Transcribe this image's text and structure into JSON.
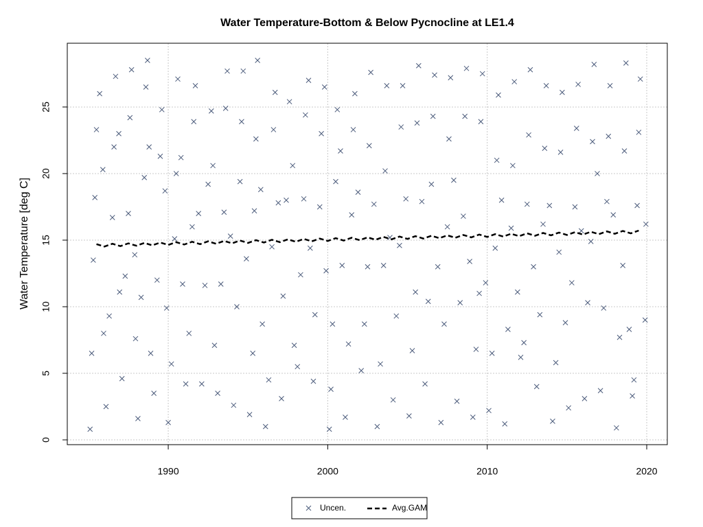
{
  "chart_data": {
    "type": "scatter",
    "title": "Water Temperature-Bottom & Below Pycnocline at LE1.4",
    "y_label": "Water Temperature [deg C]",
    "xlim": [
      1983.67,
      2021.29
    ],
    "ylim": [
      -0.36,
      29.79
    ],
    "xticks": [
      1990,
      2000,
      2010,
      2020
    ],
    "yticks": [
      0,
      5,
      10,
      15,
      20,
      25
    ],
    "grid": true,
    "legend": "bottom",
    "series": [
      {
        "name": "Uncen.",
        "color": "#4a5a7a",
        "style": "points",
        "x": [
          1985.1,
          1985.2,
          1985.3,
          1985.4,
          1985.5,
          1985.7,
          1985.9,
          1985.95,
          1986.1,
          1986.3,
          1986.5,
          1986.6,
          1986.7,
          1986.9,
          1986.95,
          1987.1,
          1987.3,
          1987.5,
          1987.6,
          1987.7,
          1987.9,
          1987.95,
          1988.1,
          1988.3,
          1988.5,
          1988.6,
          1988.7,
          1988.8,
          1988.9,
          1989.1,
          1989.3,
          1989.5,
          1989.6,
          1989.8,
          1989.9,
          1990.0,
          1990.2,
          1990.4,
          1990.5,
          1990.6,
          1990.8,
          1990.9,
          1991.1,
          1991.3,
          1991.5,
          1991.6,
          1991.7,
          1991.9,
          1992.1,
          1992.3,
          1992.5,
          1992.7,
          1992.8,
          1992.9,
          1993.1,
          1993.3,
          1993.5,
          1993.6,
          1993.7,
          1993.9,
          1994.1,
          1994.3,
          1994.5,
          1994.6,
          1994.7,
          1994.9,
          1995.1,
          1995.3,
          1995.4,
          1995.5,
          1995.6,
          1995.8,
          1995.9,
          1996.1,
          1996.3,
          1996.5,
          1996.6,
          1996.7,
          1996.9,
          1997.1,
          1997.2,
          1997.4,
          1997.6,
          1997.8,
          1997.9,
          1998.1,
          1998.3,
          1998.5,
          1998.6,
          1998.8,
          1998.9,
          1999.1,
          1999.2,
          1999.5,
          1999.6,
          1999.8,
          1999.9,
          2000.1,
          2000.2,
          2000.3,
          2000.5,
          2000.6,
          2000.8,
          2000.9,
          2001.1,
          2001.3,
          2001.5,
          2001.6,
          2001.7,
          2001.9,
          2002.1,
          2002.3,
          2002.5,
          2002.6,
          2002.7,
          2002.9,
          2003.1,
          2003.3,
          2003.5,
          2003.6,
          2003.7,
          2003.9,
          2004.1,
          2004.3,
          2004.5,
          2004.6,
          2004.7,
          2004.9,
          2005.1,
          2005.3,
          2005.5,
          2005.6,
          2005.7,
          2005.9,
          2006.1,
          2006.3,
          2006.5,
          2006.6,
          2006.7,
          2006.9,
          2007.1,
          2007.3,
          2007.5,
          2007.6,
          2007.7,
          2007.9,
          2008.1,
          2008.3,
          2008.5,
          2008.6,
          2008.7,
          2008.9,
          2009.1,
          2009.3,
          2009.5,
          2009.6,
          2009.7,
          2009.9,
          2010.1,
          2010.3,
          2010.5,
          2010.6,
          2010.7,
          2010.9,
          2011.1,
          2011.3,
          2011.5,
          2011.6,
          2011.7,
          2011.9,
          2012.1,
          2012.3,
          2012.5,
          2012.6,
          2012.7,
          2012.9,
          2013.1,
          2013.3,
          2013.5,
          2013.6,
          2013.7,
          2013.9,
          2014.1,
          2014.3,
          2014.5,
          2014.6,
          2014.7,
          2014.9,
          2015.1,
          2015.3,
          2015.5,
          2015.6,
          2015.7,
          2015.9,
          2016.1,
          2016.3,
          2016.5,
          2016.6,
          2016.7,
          2016.9,
          2017.1,
          2017.3,
          2017.5,
          2017.6,
          2017.7,
          2017.9,
          2018.1,
          2018.3,
          2018.5,
          2018.6,
          2018.7,
          2018.9,
          2019.1,
          2019.2,
          2019.4,
          2019.5,
          2019.6,
          2019.9,
          2019.95
        ],
        "values": [
          0.8,
          6.5,
          13.5,
          18.2,
          23.3,
          26.0,
          20.3,
          8.0,
          2.5,
          9.3,
          16.7,
          22.0,
          27.3,
          23.0,
          11.1,
          4.6,
          12.3,
          17.0,
          24.2,
          27.8,
          13.9,
          7.6,
          1.6,
          10.7,
          19.7,
          26.5,
          28.5,
          22.0,
          6.5,
          3.5,
          12.0,
          21.3,
          24.8,
          18.7,
          9.9,
          1.3,
          5.7,
          15.1,
          20.0,
          27.1,
          21.2,
          11.7,
          4.2,
          8.0,
          16.0,
          23.9,
          26.6,
          17.0,
          4.2,
          11.6,
          19.2,
          24.7,
          20.6,
          7.1,
          3.5,
          11.7,
          17.1,
          24.9,
          27.7,
          15.3,
          2.6,
          10.0,
          19.4,
          23.9,
          27.7,
          13.6,
          1.9,
          6.5,
          17.2,
          22.6,
          28.5,
          18.8,
          8.7,
          1.0,
          4.5,
          14.5,
          23.3,
          26.1,
          17.8,
          3.1,
          10.8,
          18.0,
          25.4,
          20.6,
          7.1,
          5.5,
          12.4,
          18.1,
          24.4,
          27.0,
          14.4,
          4.4,
          9.4,
          17.5,
          23.0,
          26.5,
          12.7,
          0.8,
          3.8,
          8.7,
          19.4,
          24.8,
          21.7,
          13.1,
          1.7,
          7.2,
          16.9,
          23.3,
          26.0,
          18.6,
          5.2,
          8.7,
          13.0,
          22.1,
          27.6,
          17.7,
          1.0,
          5.7,
          13.1,
          20.2,
          26.6,
          15.2,
          3.0,
          9.3,
          14.6,
          23.5,
          26.6,
          18.1,
          1.8,
          6.7,
          11.1,
          23.8,
          28.1,
          17.9,
          4.2,
          10.4,
          19.2,
          24.3,
          27.4,
          13.0,
          1.3,
          8.7,
          16.0,
          22.6,
          27.2,
          19.5,
          2.9,
          10.3,
          16.8,
          24.3,
          27.9,
          13.4,
          1.7,
          6.8,
          11.0,
          23.9,
          27.5,
          11.8,
          2.2,
          6.5,
          14.4,
          21.0,
          25.9,
          18.0,
          1.2,
          8.3,
          15.9,
          20.6,
          26.9,
          11.1,
          6.2,
          7.3,
          17.7,
          22.9,
          27.8,
          13.0,
          4.0,
          9.4,
          16.2,
          21.9,
          26.6,
          17.6,
          1.4,
          5.8,
          14.1,
          21.6,
          26.1,
          8.8,
          2.4,
          11.8,
          17.5,
          23.4,
          26.7,
          15.7,
          3.1,
          10.3,
          14.9,
          22.4,
          28.2,
          20.0,
          3.7,
          9.9,
          17.9,
          22.8,
          26.6,
          16.9,
          0.9,
          7.7,
          13.1,
          21.7,
          28.3,
          8.3,
          3.3,
          4.5,
          17.6,
          23.1,
          27.1,
          9.0,
          16.2
        ]
      },
      {
        "name": "Avg.GAM",
        "color": "#000000",
        "style": "dashed-line",
        "x": [
          1985.5,
          1986.0,
          1986.5,
          1987.0,
          1987.5,
          1988.0,
          1988.5,
          1989.0,
          1989.5,
          1990.0,
          1990.5,
          1991.0,
          1991.5,
          1992.0,
          1992.5,
          1993.0,
          1993.5,
          1994.0,
          1994.5,
          1995.0,
          1995.5,
          1996.0,
          1996.5,
          1997.0,
          1997.5,
          1998.0,
          1998.5,
          1999.0,
          1999.5,
          2000.0,
          2000.5,
          2001.0,
          2001.5,
          2002.0,
          2002.5,
          2003.0,
          2003.5,
          2004.0,
          2004.5,
          2005.0,
          2005.5,
          2006.0,
          2006.5,
          2007.0,
          2007.5,
          2008.0,
          2008.5,
          2009.0,
          2009.5,
          2010.0,
          2010.5,
          2011.0,
          2011.5,
          2012.0,
          2012.5,
          2013.0,
          2013.5,
          2014.0,
          2014.5,
          2015.0,
          2015.5,
          2016.0,
          2016.5,
          2017.0,
          2017.5,
          2018.0,
          2018.5,
          2019.0,
          2019.5
        ],
        "values": [
          14.7,
          14.52,
          14.73,
          14.55,
          14.76,
          14.58,
          14.79,
          14.61,
          14.82,
          14.64,
          14.85,
          14.67,
          14.88,
          14.7,
          14.91,
          14.73,
          14.94,
          14.76,
          14.97,
          14.79,
          15.0,
          14.82,
          15.03,
          14.85,
          15.06,
          14.88,
          15.09,
          14.91,
          15.12,
          14.94,
          15.15,
          14.97,
          15.18,
          15.0,
          15.21,
          15.03,
          15.24,
          15.06,
          15.27,
          15.09,
          15.3,
          15.12,
          15.33,
          15.15,
          15.36,
          15.18,
          15.39,
          15.21,
          15.42,
          15.24,
          15.45,
          15.27,
          15.48,
          15.3,
          15.51,
          15.33,
          15.54,
          15.36,
          15.57,
          15.39,
          15.6,
          15.42,
          15.63,
          15.45,
          15.66,
          15.48,
          15.69,
          15.51,
          15.72
        ]
      }
    ]
  }
}
